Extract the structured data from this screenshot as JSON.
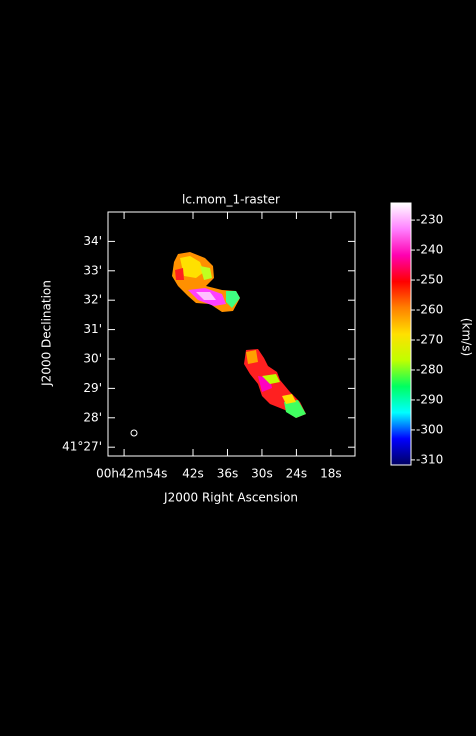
{
  "chart_data": {
    "type": "image",
    "title": "lc.mom_1-raster",
    "xlabel": "J2000 Right Ascension",
    "ylabel": "J2000 Declination",
    "colorbar_label": "(km/s)",
    "xlim": [
      56.8,
      13.8
    ],
    "xticks": [
      {
        "value": 54,
        "label": "00h42m54s"
      },
      {
        "value": 42,
        "label": "42s"
      },
      {
        "value": 36,
        "label": "36s"
      },
      {
        "value": 30,
        "label": "30s"
      },
      {
        "value": 24,
        "label": "24s"
      },
      {
        "value": 18,
        "label": "18s"
      }
    ],
    "ylim": [
      26.7,
      35.0
    ],
    "yticks": [
      {
        "value": 27,
        "label": "41°27'"
      },
      {
        "value": 28,
        "label": "28'"
      },
      {
        "value": 29,
        "label": "29'"
      },
      {
        "value": 30,
        "label": "30'"
      },
      {
        "value": 31,
        "label": "31'"
      },
      {
        "value": 32,
        "label": "32'"
      },
      {
        "value": 33,
        "label": "33'"
      },
      {
        "value": 34,
        "label": "34'"
      }
    ],
    "clim": [
      -311.7,
      -224.3
    ],
    "cticks": [
      -230,
      -240,
      -250,
      -260,
      -270,
      -280,
      -290,
      -300,
      -310
    ],
    "colormap": [
      "#000060",
      "#0000ff",
      "#00ffff",
      "#00ff60",
      "#c0ff00",
      "#ffe000",
      "#ff8000",
      "#ff0000",
      "#ff00b0",
      "#ff80ff",
      "#ffffff"
    ]
  }
}
